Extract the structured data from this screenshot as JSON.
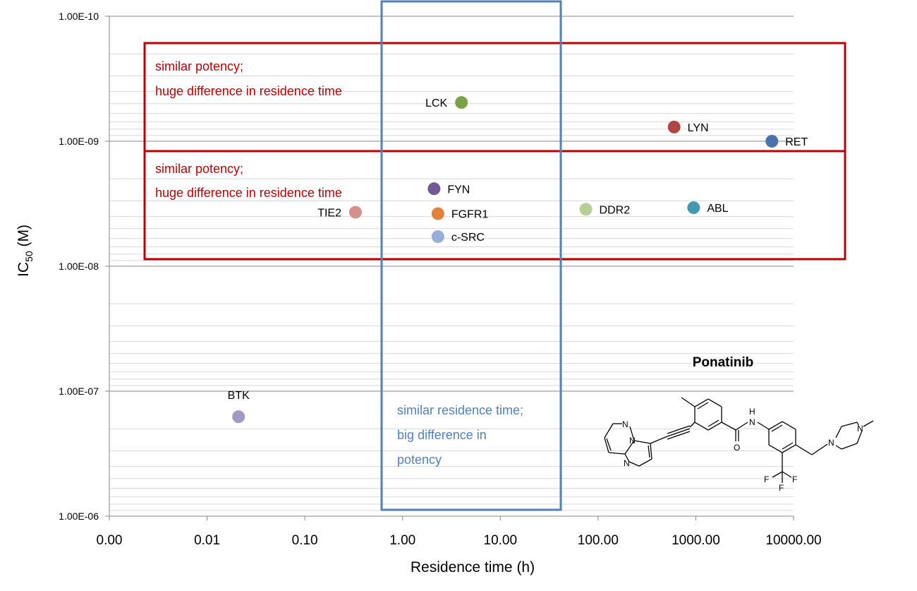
{
  "chart_data": {
    "type": "scatter",
    "x_scale": "log",
    "y_scale": "log",
    "y_reversed": true,
    "xlabel": "Residence time (h)",
    "ylabel_main": "IC",
    "ylabel_sub": "50",
    "ylabel_unit": " (M)",
    "x_ticks": [
      {
        "value": 0.001,
        "label": "0.00"
      },
      {
        "value": 0.01,
        "label": "0.01"
      },
      {
        "value": 0.1,
        "label": "0.10"
      },
      {
        "value": 1,
        "label": "1.00"
      },
      {
        "value": 10,
        "label": "10.00"
      },
      {
        "value": 100,
        "label": "100.00"
      },
      {
        "value": 1000,
        "label": "1000.00"
      },
      {
        "value": 10000,
        "label": "10000.00"
      }
    ],
    "y_ticks": [
      {
        "value": 1e-10,
        "label": "1.00E-10"
      },
      {
        "value": 1e-09,
        "label": "1.00E-09"
      },
      {
        "value": 1e-08,
        "label": "1.00E-08"
      },
      {
        "value": 1e-07,
        "label": "1.00E-07"
      },
      {
        "value": 1e-06,
        "label": "1.00E-06"
      }
    ],
    "xlim": [
      0.001,
      10000
    ],
    "ylim": [
      1e-10,
      1e-06
    ],
    "grid": true,
    "points": [
      {
        "name": "LCK",
        "x": 4.0,
        "y": 4.9e-10,
        "color": "#77a346",
        "label_side": "left"
      },
      {
        "name": "LYN",
        "x": 600,
        "y": 7.7e-10,
        "color": "#b04542",
        "label_side": "right"
      },
      {
        "name": "RET",
        "x": 6000,
        "y": 1e-09,
        "color": "#4a72ad",
        "label_side": "right"
      },
      {
        "name": "FYN",
        "x": 2.1,
        "y": 2.4e-09,
        "color": "#725894",
        "label_side": "right"
      },
      {
        "name": "TIE2",
        "x": 0.33,
        "y": 3.7e-09,
        "color": "#d4908d",
        "label_side": "left"
      },
      {
        "name": "FGFR1",
        "x": 2.3,
        "y": 3.8e-09,
        "color": "#e1823c",
        "label_side": "right"
      },
      {
        "name": "c-SRC",
        "x": 2.3,
        "y": 5.8e-09,
        "color": "#98aed6",
        "label_side": "right"
      },
      {
        "name": "DDR2",
        "x": 75,
        "y": 3.5e-09,
        "color": "#b6cf96",
        "label_side": "right"
      },
      {
        "name": "ABL",
        "x": 950,
        "y": 3.4e-09,
        "color": "#4099b0",
        "label_side": "right"
      },
      {
        "name": "BTK",
        "x": 0.021,
        "y": 1.6e-07,
        "color": "#a399c4",
        "label_side": "above"
      }
    ]
  },
  "annotations": {
    "red_box_upper": [
      "similar potency;",
      "huge difference in residence time"
    ],
    "red_box_lower": [
      "similar potency;",
      "huge difference in residence time"
    ],
    "blue_box": [
      "similar residence time;",
      "big difference in",
      "potency"
    ],
    "red_color": "#c00000",
    "blue_color": "#4f81bd"
  },
  "molecule": {
    "title": "Ponatinib",
    "atoms": {
      "N": "N",
      "H": "H",
      "O": "O",
      "F": "F"
    }
  }
}
